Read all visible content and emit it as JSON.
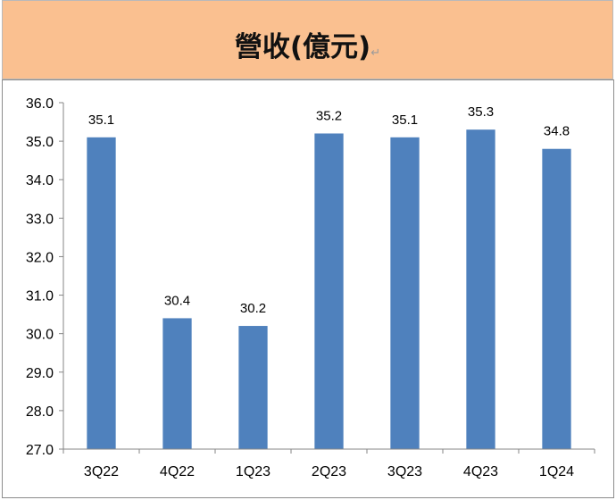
{
  "title_bar": {
    "background": "#FAC090"
  },
  "chart_data": {
    "type": "bar",
    "title": "營收(億元)",
    "categories": [
      "3Q22",
      "4Q22",
      "1Q23",
      "2Q23",
      "3Q23",
      "4Q23",
      "1Q24"
    ],
    "values": [
      35.1,
      30.4,
      30.2,
      35.2,
      35.1,
      35.3,
      34.8
    ],
    "data_labels": [
      "35.1",
      "30.4",
      "30.2",
      "35.2",
      "35.1",
      "35.3",
      "34.8"
    ],
    "yticks": [
      "27.0",
      "28.0",
      "29.0",
      "30.0",
      "31.0",
      "32.0",
      "33.0",
      "34.0",
      "35.0",
      "36.0"
    ],
    "ylim": [
      27,
      36
    ],
    "xlabel": "",
    "ylabel": "",
    "grid": false,
    "legend": "none",
    "bar_color": "#4F81BD"
  }
}
